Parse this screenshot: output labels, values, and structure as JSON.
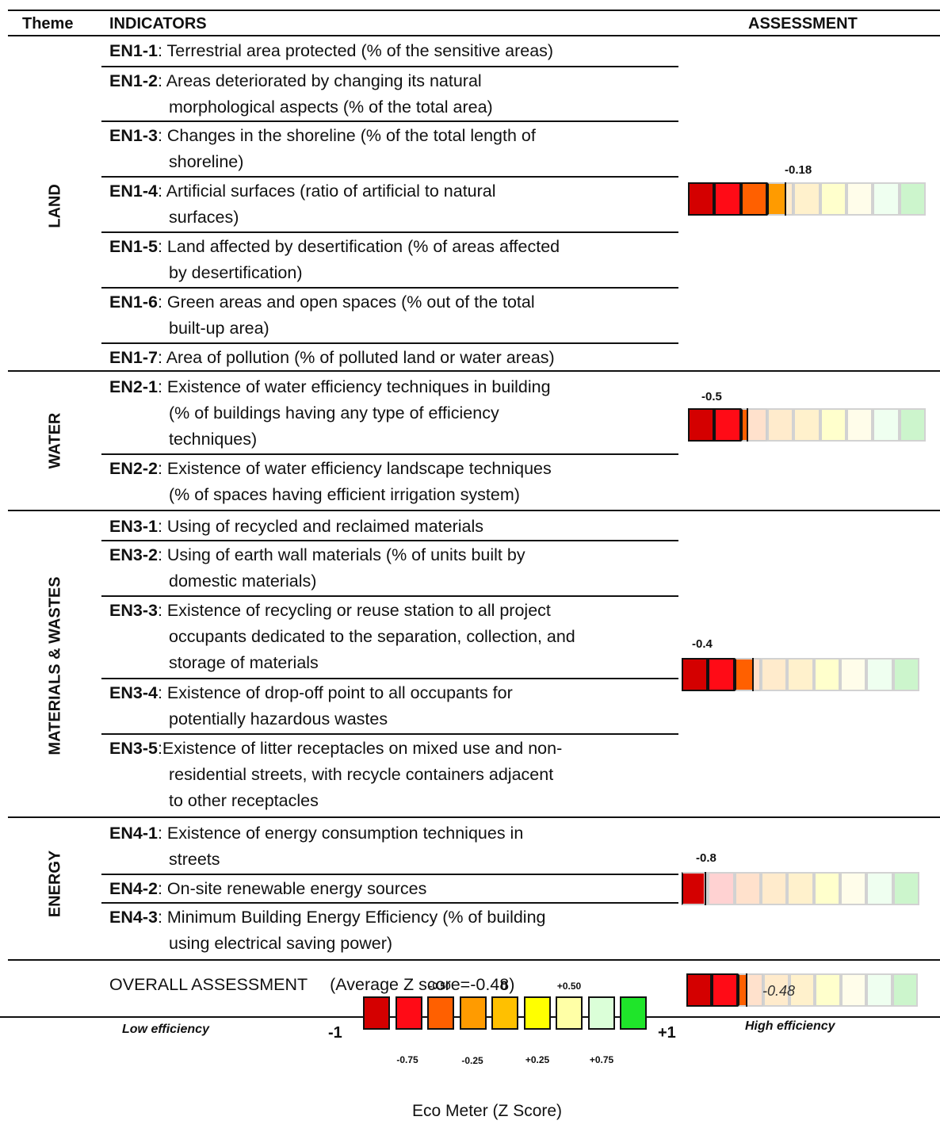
{
  "headers": {
    "theme": "Theme",
    "indicators": "INDICATORS",
    "assessment": "ASSESSMENT"
  },
  "themes": [
    {
      "label": "LAND",
      "indicators": [
        {
          "code": "EN1-1",
          "lines": [
            ": Terrestrial area protected (% of the sensitive areas)"
          ]
        },
        {
          "code": "EN1-2",
          "lines": [
            ": Areas deteriorated by changing its natural",
            "morphological aspects (% of the total area)"
          ]
        },
        {
          "code": "EN1-3",
          "lines": [
            ": Changes in the shoreline (% of the total length of",
            "shoreline)"
          ]
        },
        {
          "code": "EN1-4",
          "lines": [
            ": Artificial surfaces (ratio of artificial to natural",
            "surfaces)"
          ]
        },
        {
          "code": "EN1-5",
          "lines": [
            ": Land affected by desertification (% of areas affected",
            "by desertification)"
          ]
        },
        {
          "code": "EN1-6",
          "lines": [
            ": Green areas and open spaces (% out of the total",
            "built-up area)"
          ]
        },
        {
          "code": "EN1-7",
          "lines": [
            ": Area of pollution (% of polluted land or water areas)"
          ]
        }
      ],
      "score": -0.18,
      "score_label": "-0.18"
    },
    {
      "label": "WATER",
      "indicators": [
        {
          "code": "EN2-1",
          "lines": [
            ": Existence of water efficiency  techniques in building",
            "(% of buildings having any type of efficiency",
            "techniques)"
          ]
        },
        {
          "code": "EN2-2",
          "lines": [
            ": Existence of water efficiency landscape techniques",
            "(% of spaces having efficient irrigation system)"
          ]
        }
      ],
      "score": -0.5,
      "score_label": "-0.5"
    },
    {
      "label": "MATERIALS & WASTES",
      "indicators": [
        {
          "code": "EN3-1",
          "lines": [
            ": Using of recycled and reclaimed materials"
          ]
        },
        {
          "code": "EN3-2",
          "lines": [
            ": Using of earth wall materials (% of units built by",
            "domestic materials)"
          ]
        },
        {
          "code": "EN3-3",
          "lines": [
            ": Existence of  recycling or reuse station to all project",
            "occupants dedicated to the separation, collection, and",
            "storage of materials"
          ]
        },
        {
          "code": "EN3-4",
          "lines": [
            ": Existence of  drop-off point to all occupants for",
            "potentially hazardous wastes"
          ]
        },
        {
          "code": "EN3-5",
          "lines": [
            ":Existence of  litter receptacles on mixed use and non-",
            "residential streets, with recycle  containers adjacent",
            "to other receptacles"
          ]
        }
      ],
      "score": -0.4,
      "score_label": "-0.4"
    },
    {
      "label": "ENERGY",
      "indicators": [
        {
          "code": "EN4-1",
          "lines": [
            ": Existence of energy consumption techniques in",
            "streets"
          ]
        },
        {
          "code": "EN4-2",
          "lines": [
            ": On-site renewable energy sources"
          ]
        },
        {
          "code": "EN4-3",
          "lines": [
            ": Minimum Building Energy Efficiency (% of building",
            "using electrical saving power)"
          ]
        }
      ],
      "score": -0.8,
      "score_label": "-0.8"
    }
  ],
  "overall": {
    "label": "OVERALL ASSESSMENT",
    "detail": "(Average Z score=-0.48)",
    "score": -0.48,
    "score_label": "-0.48"
  },
  "legend": {
    "low": "Low efficiency",
    "high": "High efficiency",
    "min_label": "-1",
    "max_label": "+1",
    "top_ticks": [
      "-0.50",
      "0",
      "+0.50"
    ],
    "bottom_ticks": [
      "-0.75",
      "-0.25",
      "+0.25",
      "+0.75"
    ],
    "colors": [
      "#d40000",
      "#ff0b16",
      "#ff6000",
      "#ff9b00",
      "#ffc000",
      "#ffff00",
      "#ffffa6",
      "#dbffd8",
      "#1fe52a"
    ],
    "caption": "Eco Meter (Z Score)"
  },
  "meter_colors_full": [
    "#d40000",
    "#ff0b16",
    "#ff6000",
    "#ff9b00",
    "#ffc000",
    "#ffff00",
    "#ffffa6",
    "#dbffd8",
    "#1fe52a"
  ],
  "meter_colors_faded": [
    "#f7c8c8",
    "#ffd2d2",
    "#ffe1cc",
    "#ffebcc",
    "#fff1cc",
    "#ffffcc",
    "#fffdea",
    "#effff0",
    "#ccf5cc"
  ]
}
